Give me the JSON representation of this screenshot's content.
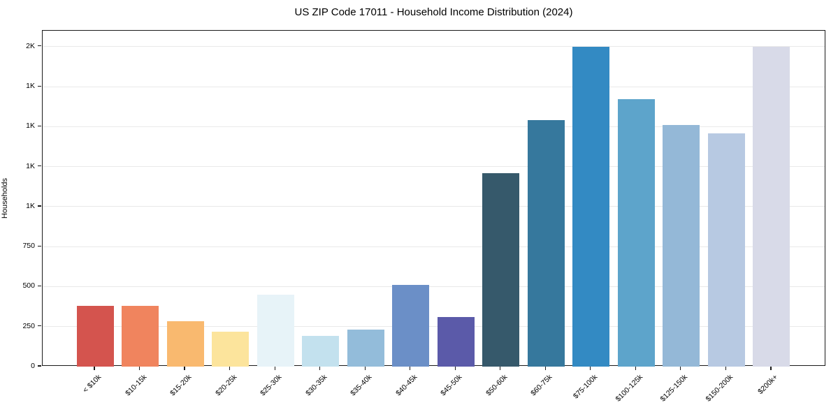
{
  "title": "US ZIP Code 17011 - Household Income Distribution (2024)",
  "y_axis": {
    "label": "Households",
    "tick_values": [
      0,
      250,
      500,
      750,
      1000,
      1250,
      1500,
      1750,
      2000
    ],
    "tick_labels": [
      "0",
      "250",
      "500",
      "750",
      "1K",
      "1K",
      "1K",
      "1K",
      "2K"
    ]
  },
  "chart_data": {
    "type": "bar",
    "title": "US ZIP Code 17011 - Household Income Distribution (2024)",
    "categories": [
      "< $10k",
      "$10-15k",
      "$15-20k",
      "$20-25k",
      "$25-30k",
      "$30-35k",
      "$35-40k",
      "$40-45k",
      "$45-50k",
      "$50-60k",
      "$60-75k",
      "$75-100k",
      "$100-125k",
      "$125-150k",
      "$150-200k",
      "$200k+"
    ],
    "values": [
      380,
      380,
      285,
      220,
      450,
      190,
      230,
      510,
      310,
      1210,
      1540,
      2000,
      1670,
      1510,
      1460,
      2000
    ],
    "bar_colors": [
      "#d4544e",
      "#f0845e",
      "#f9b96f",
      "#fce49c",
      "#e7f3f8",
      "#c3e1ee",
      "#93bcda",
      "#6b8fc7",
      "#5b5aa9",
      "#36596b",
      "#36789d",
      "#338ac3",
      "#5da4cb",
      "#94b8d7",
      "#b7c9e2",
      "#d8dae8"
    ],
    "xlabel": "",
    "ylabel": "Households",
    "ylim": [
      0,
      2100
    ],
    "grid": true,
    "grid_color": "#e9e9e9",
    "spine_color": "#1a1a1a",
    "legend": false
  }
}
